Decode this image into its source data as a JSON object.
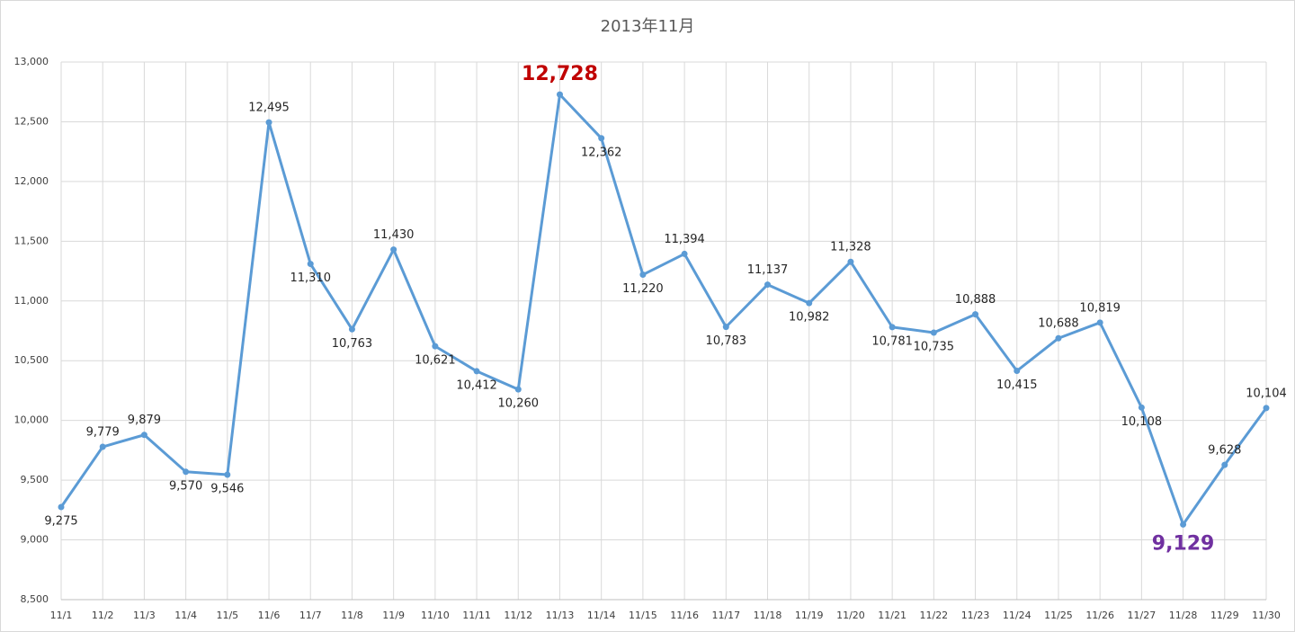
{
  "chart_data": {
    "type": "line",
    "title": "2013年11月",
    "categories": [
      "11/1",
      "11/2",
      "11/3",
      "11/4",
      "11/5",
      "11/6",
      "11/7",
      "11/8",
      "11/9",
      "11/10",
      "11/11",
      "11/12",
      "11/13",
      "11/14",
      "11/15",
      "11/16",
      "11/17",
      "11/18",
      "11/19",
      "11/20",
      "11/21",
      "11/22",
      "11/23",
      "11/24",
      "11/25",
      "11/26",
      "11/27",
      "11/28",
      "11/29",
      "11/30"
    ],
    "series": [
      {
        "color": "#5b9bd5",
        "values": [
          9275,
          9779,
          9879,
          9570,
          9546,
          12495,
          11310,
          10763,
          11430,
          10621,
          10412,
          10260,
          12728,
          12362,
          11220,
          11394,
          10783,
          11137,
          10982,
          11328,
          10781,
          10735,
          10888,
          10415,
          10688,
          10819,
          10108,
          9129,
          9628,
          10104
        ],
        "value_labels": [
          "9,275",
          "9,779",
          "9,879",
          "9,570",
          "9,546",
          "12,495",
          "11,310",
          "10,763",
          "11,430",
          "10,621",
          "10,412",
          "10,260",
          "12,728",
          "12,362",
          "11,220",
          "11,394",
          "10,783",
          "11,137",
          "10,982",
          "11,328",
          "10,781",
          "10,735",
          "10,888",
          "10,415",
          "10,688",
          "10,819",
          "10,108",
          "9,129",
          "9,628",
          "10,104"
        ]
      }
    ],
    "max_label_color": "#c00000",
    "min_label_color": "#7030a0",
    "ylim": [
      8500,
      13000
    ],
    "yticks": [
      {
        "value": 8500,
        "label": "8,500"
      },
      {
        "value": 9000,
        "label": "9,000"
      },
      {
        "value": 9500,
        "label": "9,500"
      },
      {
        "value": 10000,
        "label": "10,000"
      },
      {
        "value": 10500,
        "label": "10,500"
      },
      {
        "value": 11000,
        "label": "11,000"
      },
      {
        "value": 11500,
        "label": "11,500"
      },
      {
        "value": 12000,
        "label": "12,000"
      },
      {
        "value": 12500,
        "label": "12,500"
      },
      {
        "value": 13000,
        "label": "13,000"
      }
    ],
    "grid": true
  }
}
